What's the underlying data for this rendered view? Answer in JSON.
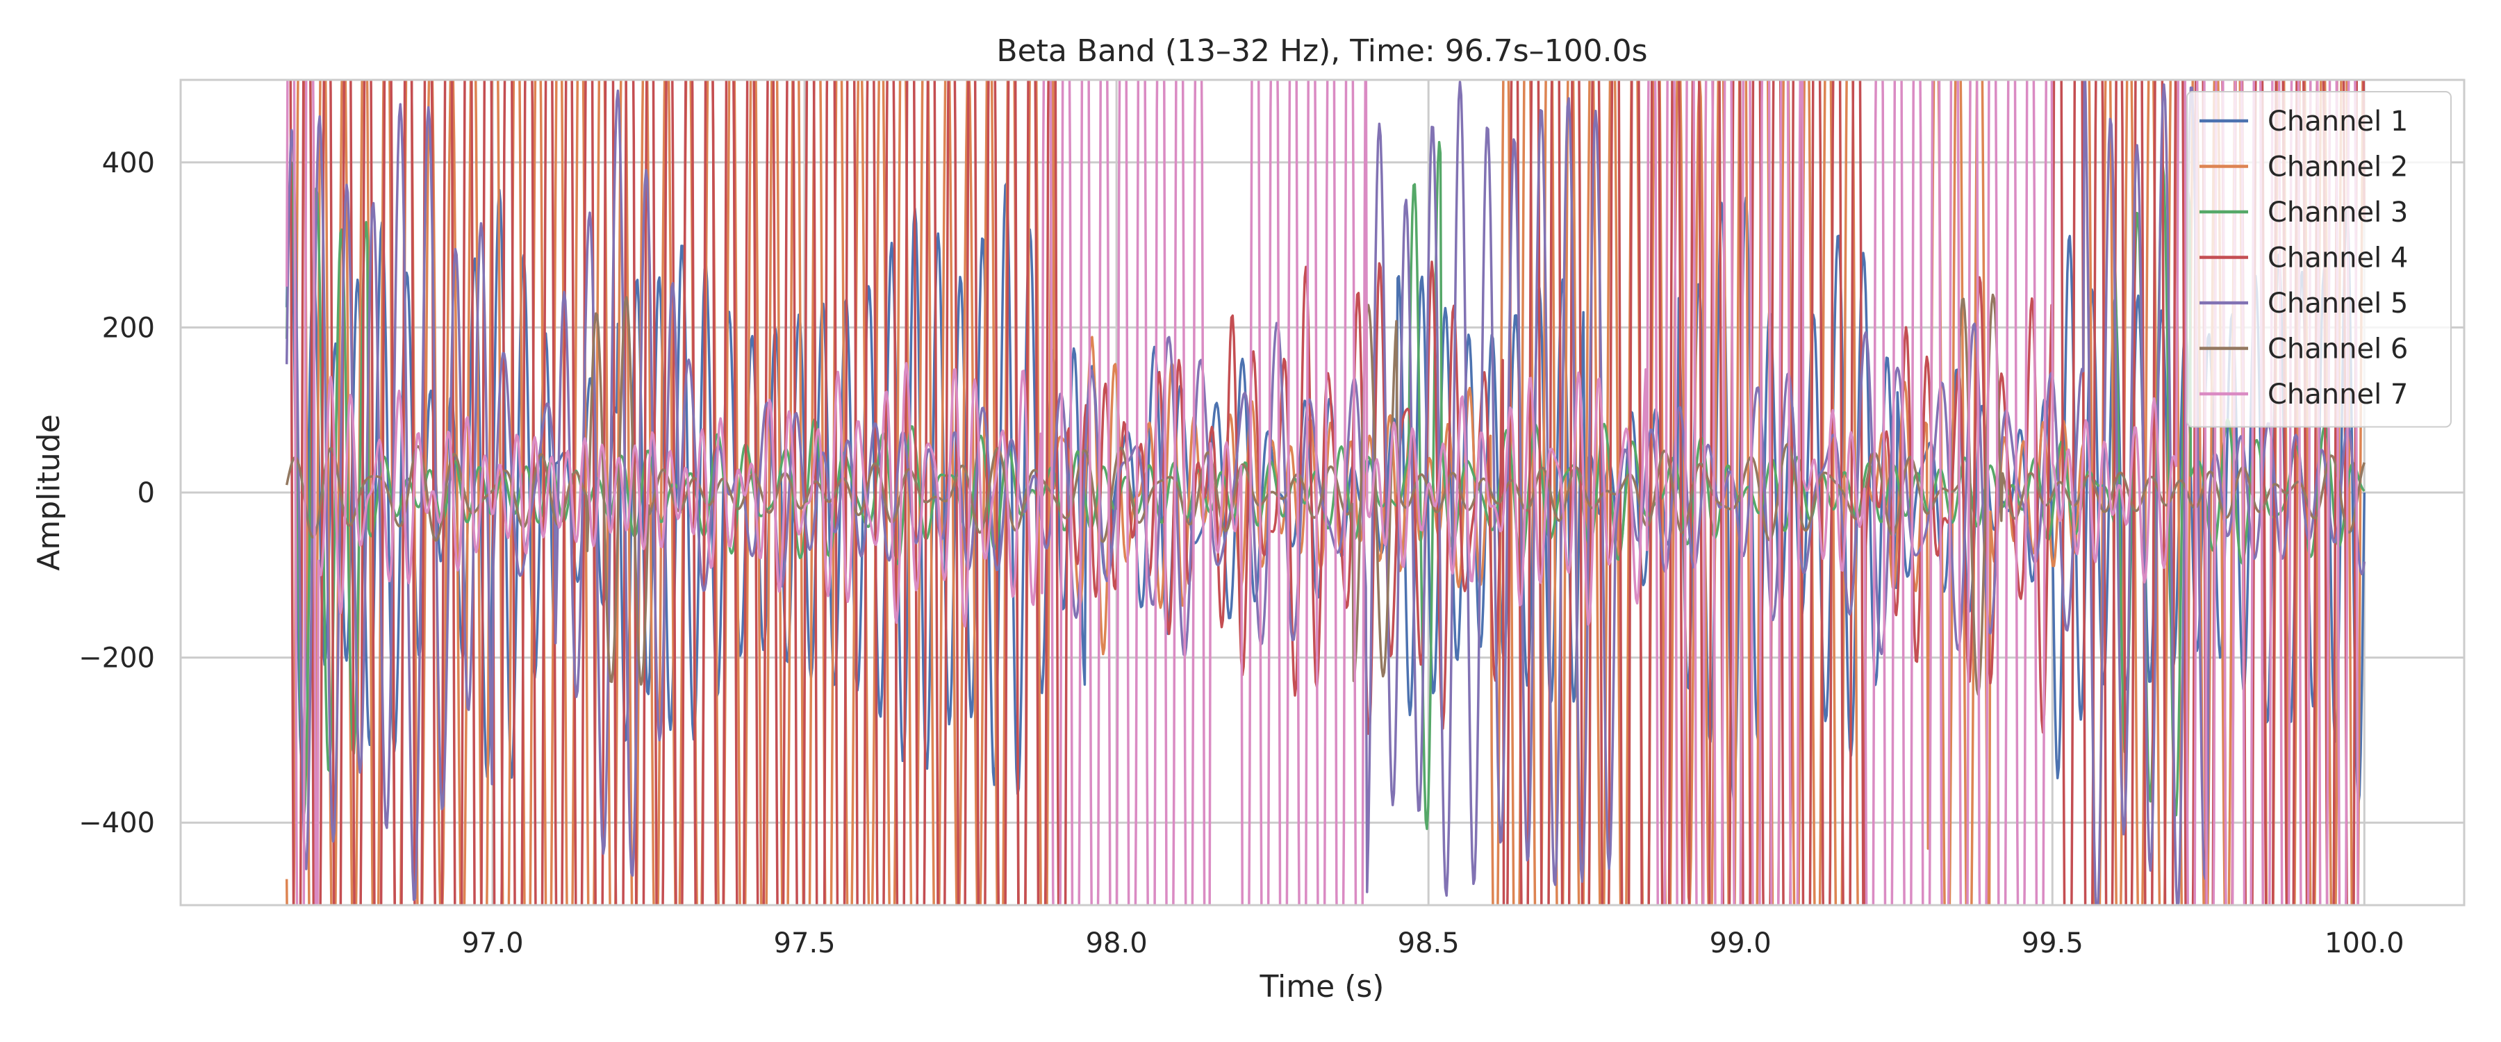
{
  "chart_data": {
    "type": "line",
    "title": "Beta Band (13–32 Hz), Time: 96.7s–100.0s",
    "xlabel": "Time (s)",
    "ylabel": "Amplitude",
    "xlim": [
      96.5,
      100.16
    ],
    "ylim": [
      -500,
      500
    ],
    "xticks": [
      97.0,
      97.5,
      98.0,
      98.5,
      99.0,
      99.5,
      100.0
    ],
    "xtick_labels": [
      "97.0",
      "97.5",
      "98.0",
      "98.5",
      "99.0",
      "99.5",
      "100.0"
    ],
    "yticks": [
      -400,
      -200,
      0,
      200,
      400
    ],
    "ytick_labels": [
      "−400",
      "−200",
      "0",
      "200",
      "400"
    ],
    "grid": true,
    "legend_position": "top-right",
    "x_start": 96.67,
    "x_end": 100.0,
    "series": [
      {
        "name": "Channel 1",
        "color": "#4c72b0",
        "amplitude": 120,
        "freq": 21,
        "bursts": [
          [
            96.67,
            97.1
          ],
          [
            97.2,
            97.95
          ],
          [
            98.45,
            98.75
          ],
          [
            98.9,
            99.25
          ],
          [
            99.5,
            100.0
          ]
        ],
        "burst_amplitude": 260
      },
      {
        "name": "Channel 2",
        "color": "#dd8452",
        "amplitude": 150,
        "freq": 23,
        "bursts": [
          [
            96.67,
            97.9
          ],
          [
            98.6,
            99.2
          ],
          [
            99.3,
            99.4
          ],
          [
            99.55,
            100.0
          ]
        ],
        "burst_amplitude": 700
      },
      {
        "name": "Channel 3",
        "color": "#55a868",
        "amplitude": 60,
        "freq": 19,
        "bursts": [
          [
            96.67,
            96.8
          ],
          [
            98.47,
            98.52
          ],
          [
            99.6,
            99.72
          ]
        ],
        "burst_amplitude": 350
      },
      {
        "name": "Channel 4",
        "color": "#c44e52",
        "amplitude": 200,
        "freq": 25,
        "bursts": [
          [
            96.67,
            97.92
          ],
          [
            98.62,
            99.2
          ],
          [
            99.5,
            100.0
          ]
        ],
        "burst_amplitude": 1100
      },
      {
        "name": "Channel 5",
        "color": "#8172b3",
        "amplitude": 140,
        "freq": 17,
        "bursts": [
          [
            96.67,
            97.0
          ],
          [
            97.1,
            97.3
          ],
          [
            98.4,
            98.8
          ],
          [
            99.55,
            99.75
          ]
        ],
        "burst_amplitude": 420
      },
      {
        "name": "Channel 6",
        "color": "#937860",
        "amplitude": 40,
        "freq": 15,
        "bursts": [
          [
            97.15,
            97.25
          ],
          [
            98.38,
            98.45
          ],
          [
            99.35,
            99.42
          ]
        ],
        "burst_amplitude": 220
      },
      {
        "name": "Channel 7",
        "color": "#da8bc3",
        "amplitude": 110,
        "freq": 27,
        "bursts": [
          [
            96.67,
            96.72
          ],
          [
            97.88,
            98.15
          ],
          [
            98.2,
            98.4
          ],
          [
            98.85,
            99.1
          ],
          [
            99.2,
            99.5
          ],
          [
            99.7,
            100.0
          ]
        ],
        "burst_amplitude": 1300
      }
    ]
  }
}
